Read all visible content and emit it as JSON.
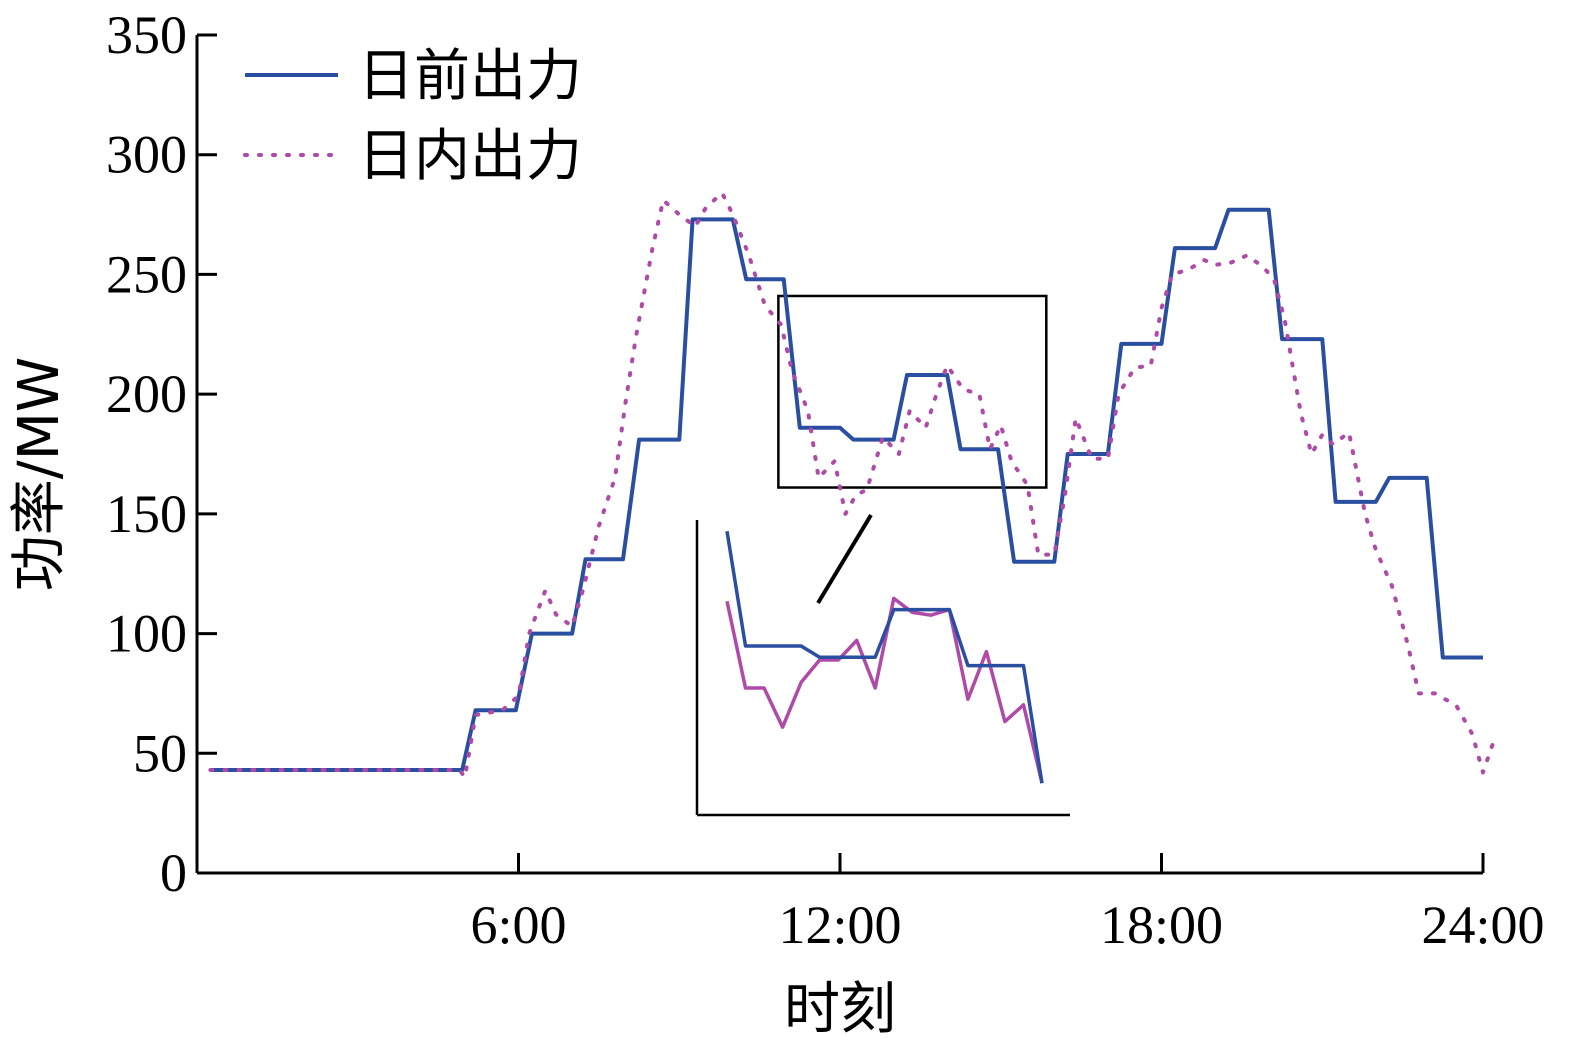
{
  "chart_data": {
    "type": "line",
    "title": "",
    "xlabel": "时刻",
    "ylabel": "功率/MW",
    "xlim": [
      0,
      24
    ],
    "ylim": [
      0,
      350
    ],
    "x_ticks": [
      {
        "value": 6,
        "label": "6:00"
      },
      {
        "value": 12,
        "label": "12:00"
      },
      {
        "value": 18,
        "label": "18:00"
      },
      {
        "value": 24,
        "label": "24:00"
      }
    ],
    "y_ticks": [
      0,
      50,
      100,
      150,
      200,
      250,
      300,
      350
    ],
    "grid": false,
    "legend_position": "top-left",
    "colors": {
      "day_ahead": "#2a4fa0",
      "intraday": "#b04aa8",
      "axis": "#000000"
    },
    "series": [
      {
        "name": "日前出力",
        "key": "day_ahead",
        "style": "solid",
        "points": [
          [
            0.25,
            43
          ],
          [
            4.95,
            43
          ],
          [
            5.2,
            68
          ],
          [
            5.95,
            68
          ],
          [
            6.25,
            100
          ],
          [
            7.0,
            100
          ],
          [
            7.25,
            131
          ],
          [
            7.95,
            131
          ],
          [
            8.25,
            181
          ],
          [
            9.0,
            181
          ],
          [
            9.25,
            273
          ],
          [
            10.0,
            273
          ],
          [
            10.25,
            248
          ],
          [
            10.95,
            248
          ],
          [
            11.25,
            186
          ],
          [
            12.0,
            186
          ],
          [
            12.25,
            181
          ],
          [
            13.0,
            181
          ],
          [
            13.25,
            208
          ],
          [
            14.0,
            208
          ],
          [
            14.25,
            177
          ],
          [
            14.95,
            177
          ],
          [
            15.25,
            130
          ],
          [
            16.0,
            130
          ],
          [
            16.25,
            175
          ],
          [
            17.0,
            175
          ],
          [
            17.25,
            221
          ],
          [
            18.0,
            221
          ],
          [
            18.25,
            261
          ],
          [
            19.0,
            261
          ],
          [
            19.25,
            277
          ],
          [
            20.0,
            277
          ],
          [
            20.25,
            223
          ],
          [
            21.0,
            223
          ],
          [
            21.25,
            155
          ],
          [
            22.0,
            155
          ],
          [
            22.25,
            165
          ],
          [
            22.95,
            165
          ],
          [
            23.25,
            90
          ],
          [
            24.0,
            90
          ]
        ]
      },
      {
        "name": "日内出力",
        "key": "intraday",
        "style": "dotted",
        "points": [
          [
            0.25,
            43
          ],
          [
            4.9,
            43
          ],
          [
            5.0,
            40
          ],
          [
            5.2,
            66
          ],
          [
            5.7,
            68
          ],
          [
            6.0,
            74
          ],
          [
            6.2,
            100
          ],
          [
            6.5,
            118
          ],
          [
            6.7,
            108
          ],
          [
            7.0,
            103
          ],
          [
            7.2,
            118
          ],
          [
            7.5,
            145
          ],
          [
            7.8,
            165
          ],
          [
            8.0,
            197
          ],
          [
            8.2,
            225
          ],
          [
            8.5,
            261
          ],
          [
            8.7,
            281
          ],
          [
            9.0,
            275
          ],
          [
            9.3,
            270
          ],
          [
            9.5,
            278
          ],
          [
            9.8,
            284
          ],
          [
            10.0,
            275
          ],
          [
            10.3,
            258
          ],
          [
            10.6,
            237
          ],
          [
            10.9,
            229
          ],
          [
            11.1,
            210
          ],
          [
            11.4,
            193
          ],
          [
            11.6,
            165
          ],
          [
            11.9,
            172
          ],
          [
            12.1,
            150
          ],
          [
            12.3,
            158
          ],
          [
            12.5,
            160
          ],
          [
            12.8,
            182
          ],
          [
            13.1,
            175
          ],
          [
            13.3,
            193
          ],
          [
            13.6,
            186
          ],
          [
            13.8,
            200
          ],
          [
            14.0,
            212
          ],
          [
            14.3,
            202
          ],
          [
            14.6,
            200
          ],
          [
            14.8,
            177
          ],
          [
            15.0,
            187
          ],
          [
            15.2,
            172
          ],
          [
            15.5,
            162
          ],
          [
            15.7,
            133
          ],
          [
            16.0,
            133
          ],
          [
            16.2,
            158
          ],
          [
            16.4,
            190
          ],
          [
            16.7,
            173
          ],
          [
            17.0,
            173
          ],
          [
            17.2,
            200
          ],
          [
            17.5,
            211
          ],
          [
            17.8,
            212
          ],
          [
            18.0,
            236
          ],
          [
            18.2,
            250
          ],
          [
            18.5,
            252
          ],
          [
            18.8,
            256
          ],
          [
            19.0,
            254
          ],
          [
            19.3,
            255
          ],
          [
            19.6,
            258
          ],
          [
            19.9,
            253
          ],
          [
            20.1,
            248
          ],
          [
            20.3,
            231
          ],
          [
            20.6,
            192
          ],
          [
            20.8,
            175
          ],
          [
            21.0,
            183
          ],
          [
            21.2,
            179
          ],
          [
            21.5,
            184
          ],
          [
            21.8,
            150
          ],
          [
            22.0,
            135
          ],
          [
            22.3,
            120
          ],
          [
            22.6,
            95
          ],
          [
            22.8,
            75
          ],
          [
            23.1,
            75
          ],
          [
            23.5,
            70
          ],
          [
            23.8,
            58
          ],
          [
            24.0,
            42
          ],
          [
            24.2,
            55
          ]
        ]
      }
    ],
    "zoom_inset": {
      "source_x": [
        10.85,
        15.85
      ],
      "source_y": [
        161,
        241
      ],
      "day_ahead": [
        0.96,
        0.55,
        0.55,
        0.55,
        0.55,
        0.51,
        0.51,
        0.51,
        0.51,
        0.68,
        0.68,
        0.68,
        0.68,
        0.48,
        0.48,
        0.48,
        0.48,
        0.06
      ],
      "intraday": [
        0.71,
        0.4,
        0.4,
        0.26,
        0.42,
        0.5,
        0.5,
        0.57,
        0.4,
        0.72,
        0.67,
        0.66,
        0.68,
        0.36,
        0.53,
        0.28,
        0.34,
        0.06
      ]
    }
  }
}
